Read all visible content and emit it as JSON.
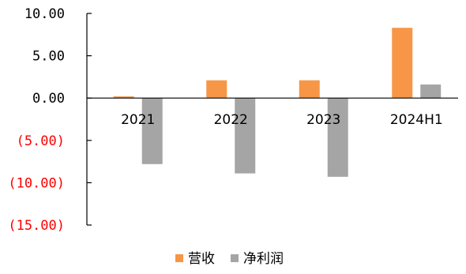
{
  "chart_data": {
    "type": "bar",
    "title": "",
    "xlabel": "",
    "ylabel": "",
    "categories": [
      "2021",
      "2022",
      "2023",
      "2024H1"
    ],
    "series": [
      {
        "name": "营收",
        "color": "#F79646",
        "values": [
          0.2,
          2.1,
          2.1,
          8.3
        ]
      },
      {
        "name": "净利润",
        "color": "#A5A5A5",
        "values": [
          -7.8,
          -8.9,
          -9.3,
          1.6
        ]
      }
    ],
    "ylim": [
      -15,
      10
    ],
    "yticks": [
      {
        "value": 10,
        "label": "10.00"
      },
      {
        "value": 5,
        "label": "5.00"
      },
      {
        "value": 0,
        "label": "0.00"
      },
      {
        "value": -5,
        "label": "(5.00)"
      },
      {
        "value": -10,
        "label": "(10.00)"
      },
      {
        "value": -15,
        "label": "(15.00)"
      }
    ],
    "negative_tick_color": "#FF0000",
    "positive_tick_color": "#000000",
    "grid": false,
    "legend": "bottom-center"
  }
}
